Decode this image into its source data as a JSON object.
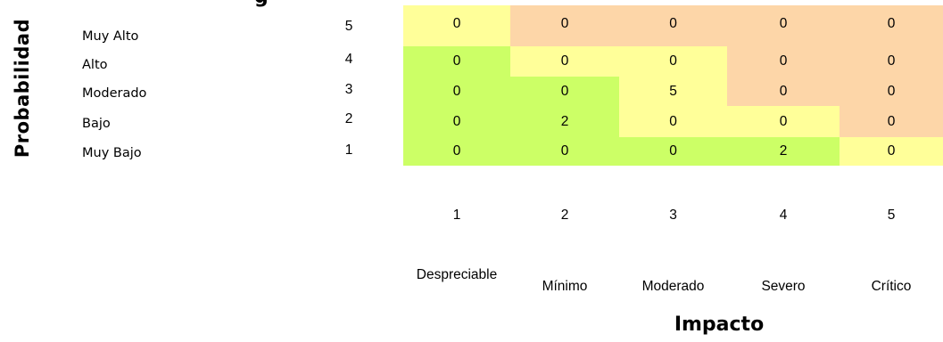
{
  "chart_data": {
    "type": "heatmap",
    "ylabel": "Probabilidad",
    "xlabel": "Impacto",
    "row_labels": [
      "Muy Alto",
      "Alto",
      "Moderado",
      "Bajo",
      "Muy Bajo"
    ],
    "row_levels": [
      5,
      4,
      3,
      2,
      1
    ],
    "col_levels": [
      1,
      2,
      3,
      4,
      5
    ],
    "col_labels": [
      "Despreciable",
      "Mínimo",
      "Moderado",
      "Severo",
      "Crítico"
    ],
    "values": [
      [
        0,
        0,
        0,
        0,
        0
      ],
      [
        0,
        0,
        0,
        0,
        0
      ],
      [
        0,
        0,
        5,
        0,
        0
      ],
      [
        0,
        2,
        0,
        0,
        0
      ],
      [
        0,
        0,
        0,
        2,
        0
      ]
    ],
    "zones": [
      [
        "yellow",
        "orange",
        "orange",
        "orange",
        "orange"
      ],
      [
        "green",
        "yellow",
        "yellow",
        "orange",
        "orange"
      ],
      [
        "green",
        "green",
        "yellow",
        "orange",
        "orange"
      ],
      [
        "green",
        "green",
        "yellow",
        "yellow",
        "orange"
      ],
      [
        "green",
        "green",
        "green",
        "green",
        "yellow"
      ]
    ],
    "zone_colors": {
      "green": "#ccff66",
      "yellow": "#ffff99",
      "orange": "#fdd6a8"
    }
  }
}
